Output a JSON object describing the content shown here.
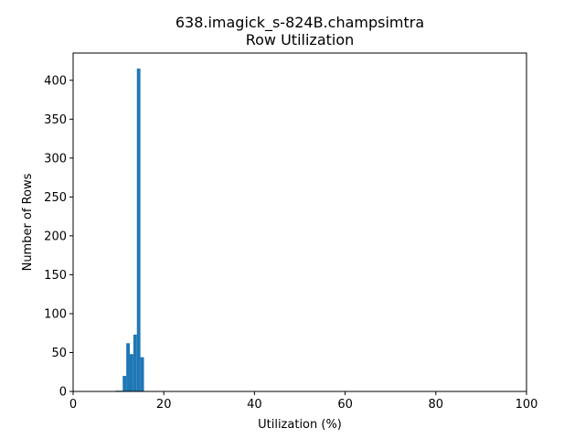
{
  "chart_data": {
    "type": "bar",
    "title_line1": "638.imagick_s-824B.champsimtra",
    "title_line2": "Row Utilization",
    "xlabel": "Utilization (%)",
    "ylabel": "Number of Rows",
    "xlim": [
      0,
      100
    ],
    "ylim": [
      0,
      435
    ],
    "xticks": [
      0,
      20,
      40,
      60,
      80,
      100
    ],
    "yticks": [
      0,
      50,
      100,
      150,
      200,
      250,
      300,
      350,
      400
    ],
    "bar_color": "#1f77b4",
    "grid": false,
    "bins": [
      {
        "x0": 9.38,
        "x1": 10.16,
        "value": 1
      },
      {
        "x0": 10.16,
        "x1": 10.94,
        "value": 1
      },
      {
        "x0": 10.94,
        "x1": 11.72,
        "value": 20
      },
      {
        "x0": 11.72,
        "x1": 12.5,
        "value": 62
      },
      {
        "x0": 12.5,
        "x1": 13.28,
        "value": 48
      },
      {
        "x0": 13.28,
        "x1": 14.06,
        "value": 73
      },
      {
        "x0": 14.06,
        "x1": 14.84,
        "value": 415
      },
      {
        "x0": 14.84,
        "x1": 15.63,
        "value": 44
      }
    ]
  }
}
